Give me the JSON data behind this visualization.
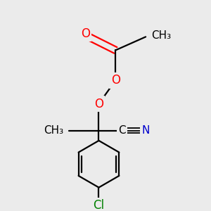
{
  "bg_color": "#ebebeb",
  "bond_color": "#000000",
  "atom_colors": {
    "O": "#ff0000",
    "N": "#0000cd",
    "Cl": "#008000",
    "C": "#000000"
  },
  "bond_width": 1.6,
  "font_size_atom": 11,
  "fig_size": [
    3.0,
    3.0
  ],
  "dpi": 100
}
